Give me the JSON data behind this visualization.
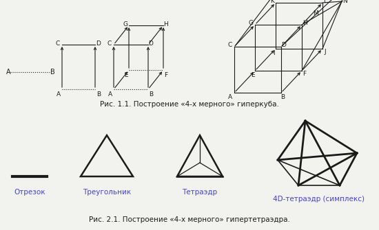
{
  "bg_color": "#f2f2ee",
  "line_color": "#1a1a1a",
  "teal_color": "#4444cc",
  "fig1_caption": "Рис. 1.1. Построение «4-х мерного» гиперкуба.",
  "fig2_caption": "Рис. 2.1. Построение «4-х мерного» гипертетраэдра.",
  "label_segment": "Отрезок",
  "label_triangle": "Треугольник",
  "label_tetra": "Тетраэдр",
  "label_4d": "4D-тетраэдр (симплекс)"
}
